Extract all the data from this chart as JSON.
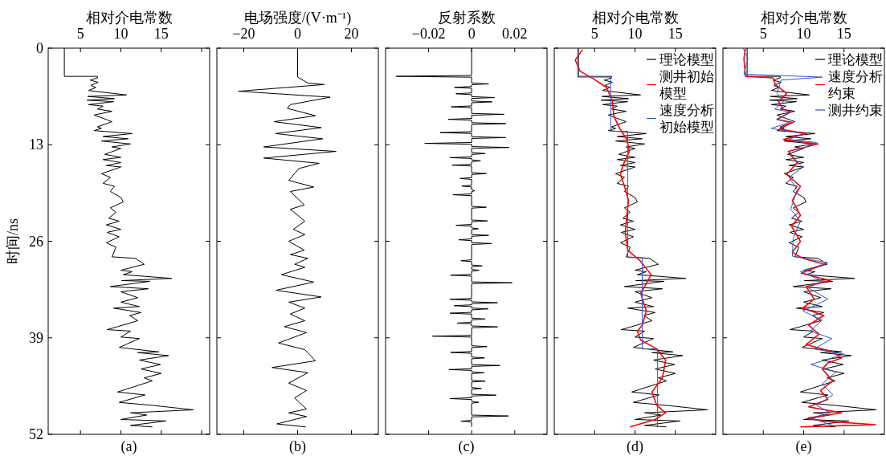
{
  "chart_data": [
    {
      "type": "line",
      "orientation": "horizontal",
      "xlabel": "相对介电常数",
      "ylabel": "时间/ns",
      "xlim": [
        1,
        21
      ],
      "xticks": [
        5,
        10,
        15,
        {
          "value": 20,
          "label": null
        }
      ],
      "ylim": [
        52,
        0
      ],
      "yticks": [
        0,
        13,
        26,
        39,
        52
      ],
      "annotations": [
        "(a)"
      ],
      "series": [
        {
          "color": "#000000",
          "x": [
            0,
            3.8,
            3.8,
            4.0,
            4.3,
            4.6,
            5.0,
            5.3,
            5.7,
            6.3,
            6.5,
            6.8,
            7.0,
            7.2,
            7.6,
            7.8,
            8.2,
            8.5,
            9.0,
            9.9,
            10.6,
            10.8,
            11.1,
            11.5,
            11.9,
            12.2,
            12.5,
            12.9,
            13.3,
            13.5,
            14.3,
            14.7,
            15.0,
            15.4,
            15.8,
            16.0,
            16.9,
            17.4,
            18.2,
            18.6,
            19.3,
            20.1,
            20.7,
            21.5,
            22.1,
            22.9,
            23.3,
            23.8,
            24.4,
            24.8,
            25.4,
            26.2,
            26.8,
            28.1,
            28.3,
            29.1,
            29.9,
            30.1,
            30.5,
            31.0,
            31.3,
            31.4,
            32.1,
            32.4,
            32.8,
            33.6,
            34.2,
            34.8,
            35.0,
            35.6,
            36.0,
            36.7,
            37.5,
            37.9,
            38.1,
            38.9,
            39.1,
            40.3,
            40.9,
            41.0,
            41.4,
            42.0,
            42.6,
            43.2,
            43.8,
            44.4,
            44.8,
            46.3,
            46.7,
            47.7,
            48.1,
            48.7,
            49.1,
            49.4,
            50.0,
            50.2,
            50.8,
            51.0
          ],
          "values": [
            3.0,
            3.0,
            7.1,
            7.1,
            6.2,
            7.2,
            6.3,
            6.9,
            6.0,
            10.7,
            5.9,
            9.2,
            5.8,
            9.1,
            6.0,
            7.8,
            7.1,
            8.9,
            6.7,
            8.9,
            7.1,
            7.6,
            6.7,
            11.4,
            7.8,
            10.9,
            7.6,
            11.2,
            8.9,
            10.0,
            8.0,
            10.0,
            7.8,
            10.0,
            8.2,
            10.0,
            7.6,
            8.7,
            7.8,
            9.2,
            8.7,
            10.0,
            10.3,
            8.7,
            9.4,
            8.5,
            9.8,
            8.2,
            10.0,
            8.3,
            9.8,
            8.2,
            9.4,
            8.9,
            11.8,
            12.9,
            10.0,
            11.4,
            10.3,
            16.3,
            10.1,
            13.6,
            8.7,
            13.4,
            10.0,
            12.1,
            10.0,
            12.3,
            9.1,
            12.5,
            11.1,
            12.1,
            9.6,
            8.3,
            11.2,
            10.0,
            12.3,
            9.8,
            14.7,
            12.1,
            15.9,
            12.3,
            14.9,
            12.5,
            15.0,
            12.9,
            13.9,
            9.6,
            13.0,
            9.8,
            13.9,
            19.0,
            11.2,
            13.2,
            10.0,
            15.6,
            11.2,
            13.9
          ]
        }
      ]
    },
    {
      "type": "line",
      "orientation": "horizontal",
      "xlabel": "电场强度/(V·m⁻¹)",
      "xlim": [
        -30,
        30
      ],
      "xticks": [
        {
          "value": -20,
          "label": "−20"
        },
        0,
        20
      ],
      "ylim": [
        52,
        0
      ],
      "yticks": [
        0,
        13,
        26,
        39,
        52
      ],
      "tick_labels": "x",
      "annotations": [
        "(b)"
      ],
      "series": [
        {
          "color": "#000000",
          "x": [
            0,
            3.9,
            4.7,
            4.9,
            5.8,
            6.6,
            7.6,
            8.1,
            9.1,
            9.9,
            10.7,
            11.5,
            12.2,
            13.3,
            13.9,
            14.8,
            15.5,
            16.2,
            17.8,
            18.7,
            19.3,
            21.1,
            21.7,
            23.3,
            24.4,
            25.1,
            26.0,
            27.2,
            27.8,
            28.3,
            29.1,
            29.5,
            30.5,
            31.5,
            32.6,
            33.5,
            34.2,
            35.0,
            35.8,
            36.7,
            37.5,
            38.3,
            39.7,
            40.6,
            42.1,
            43.0,
            43.7,
            45.1,
            46.1,
            47.1,
            48.6,
            49.1,
            49.6,
            50.6,
            51.0
          ],
          "values": [
            0,
            0,
            3.8,
            9.9,
            -22.0,
            12.1,
            -2.7,
            -3.8,
            6.6,
            -8.8,
            8.8,
            -8.2,
            9.3,
            -12.6,
            14.3,
            -12.6,
            8.0,
            0.5,
            -3.3,
            6.0,
            -2.7,
            2.5,
            -2.7,
            2.7,
            -1.6,
            2.7,
            -3.3,
            2.5,
            -2.7,
            3.8,
            -1.1,
            2.7,
            -6.0,
            6.0,
            -8.0,
            8.8,
            -3.3,
            2.7,
            -2.7,
            2.7,
            -4.9,
            3.3,
            -7.1,
            2.7,
            6.6,
            -9.5,
            3.8,
            -3.3,
            3.3,
            -1.1,
            3.3,
            -3.3,
            3.3,
            -7.7,
            3.0
          ]
        }
      ]
    },
    {
      "type": "line",
      "orientation": "horizontal",
      "xlabel": "反射系数",
      "xlim": [
        -0.04,
        0.035
      ],
      "xticks": [
        {
          "value": -0.02,
          "label": "−0.02"
        },
        0,
        0.02
      ],
      "ylim": [
        52,
        0
      ],
      "yticks": [
        0,
        13,
        26,
        39,
        52
      ],
      "tick_labels": "x",
      "annotations": [
        "(c)"
      ],
      "series": [
        {
          "color": "#000000",
          "x": [
            0,
            3.67,
            3.79,
            3.91,
            4.69,
            4.81,
            4.93,
            5.16,
            5.28,
            5.4,
            6.02,
            6.14,
            6.26,
            6.53,
            6.65,
            6.77,
            7.11,
            7.23,
            7.35,
            7.78,
            7.9,
            8.02,
            8.79,
            8.91,
            9.03,
            9.46,
            9.58,
            9.7,
            10.04,
            10.16,
            10.28,
            11.25,
            11.37,
            11.49,
            11.92,
            12.04,
            12.16,
            12.7,
            12.82,
            12.94,
            13.25,
            13.37,
            13.49,
            14.07,
            14.19,
            14.31,
            14.62,
            14.74,
            14.86,
            15.05,
            15.17,
            15.29,
            15.63,
            15.75,
            15.87,
            16.77,
            16.89,
            17.01,
            17.43,
            17.55,
            17.67,
            18.45,
            18.57,
            18.69,
            19.08,
            19.2,
            19.32,
            19.62,
            19.74,
            19.86,
            21.3,
            21.42,
            21.54,
            23.14,
            23.26,
            23.38,
            23.73,
            23.85,
            23.97,
            24.2,
            24.32,
            24.44,
            25.09,
            25.21,
            25.33,
            25.68,
            25.8,
            25.92,
            26.19,
            26.31,
            26.43,
            28.5,
            28.62,
            28.74,
            29.2,
            29.32,
            29.44,
            29.79,
            29.91,
            30.03,
            30.45,
            30.57,
            30.69,
            31.47,
            31.59,
            31.71,
            33.7,
            33.82,
            33.94,
            34.16,
            34.28,
            34.4,
            34.56,
            34.68,
            34.8,
            34.99,
            35.11,
            35.23,
            35.57,
            35.69,
            35.81,
            36.35,
            36.47,
            36.59,
            36.9,
            37.02,
            37.14,
            37.41,
            37.53,
            37.65,
            38.66,
            38.78,
            38.9,
            40.07,
            40.19,
            40.31,
            40.85,
            40.97,
            41.09,
            41.59,
            41.71,
            41.83,
            42.61,
            42.73,
            42.85,
            43.16,
            43.28,
            43.4,
            43.59,
            43.71,
            43.83,
            44.72,
            44.84,
            44.96,
            45.7,
            45.82,
            45.94,
            46.6,
            46.72,
            46.84,
            47.07,
            47.19,
            47.31,
            47.57,
            47.69,
            47.81,
            49.41,
            49.53,
            49.65,
            50.11,
            50.23,
            50.35,
            51.0
          ],
          "values": [
            0,
            0,
            -0.035,
            0,
            0,
            0.0079,
            0,
            0,
            -0.008,
            0,
            0,
            -0.0073,
            0,
            0,
            0.0106,
            0,
            0,
            0.0095,
            0,
            0,
            -0.0095,
            0,
            0,
            0.015,
            0,
            0,
            -0.0109,
            0,
            0,
            0.0158,
            0,
            0,
            -0.0146,
            0,
            0,
            0.0158,
            0,
            0,
            -0.0218,
            0,
            0,
            0.0174,
            0,
            0,
            0.0063,
            0,
            0,
            -0.0101,
            0,
            0,
            0.0041,
            0,
            0,
            -0.0091,
            0,
            0,
            0.0068,
            0,
            0,
            -0.0054,
            0,
            0,
            -0.0046,
            0,
            0,
            0.0014,
            0,
            0,
            -0.0087,
            0,
            0,
            0.0068,
            0,
            0,
            0.0073,
            0,
            0,
            -0.0073,
            0,
            0,
            0.0031,
            0,
            0,
            0.0079,
            0,
            0,
            -0.006,
            0,
            0,
            0.0093,
            0,
            0,
            -0.005,
            0,
            0,
            0.0049,
            0,
            0,
            0.0035,
            0,
            0,
            -0.0098,
            0,
            0,
            0.0188,
            0,
            0,
            -0.0101,
            0,
            0,
            0.012,
            0,
            0,
            -0.0082,
            0,
            0,
            0.0076,
            0,
            0,
            -0.0101,
            0,
            0,
            0.0063,
            0,
            0,
            -0.0068,
            0,
            0,
            0.012,
            0,
            0,
            -0.0182,
            0,
            0,
            0.0071,
            0,
            0,
            -0.0098,
            0,
            0,
            0.006,
            0,
            0,
            0.0131,
            0,
            0,
            -0.0105,
            0,
            0,
            0.0059,
            0,
            0,
            0.0063,
            0,
            0,
            0.0045,
            0,
            0,
            0.0113,
            0,
            0,
            -0.0101,
            0,
            0,
            0.0033,
            0,
            0,
            0.0171,
            0,
            0,
            -0.005,
            0,
            0
          ]
        }
      ]
    },
    {
      "type": "line",
      "orientation": "horizontal",
      "xlabel": "相对介电常数",
      "xlim": [
        0,
        20
      ],
      "xticks": [
        5,
        10,
        15
      ],
      "ylim": [
        52,
        0
      ],
      "yticks": [
        0,
        13,
        26,
        39,
        52
      ],
      "tick_labels": "x",
      "legend": "top right",
      "annotations": [
        "(d)"
      ],
      "series": [
        {
          "name": "理论模型",
          "color": "#000000",
          "x": [
            0,
            3.8,
            3.8,
            4.0,
            4.3,
            4.6,
            5.0,
            5.3,
            5.7,
            6.3,
            6.5,
            6.8,
            7.0,
            7.2,
            7.6,
            7.8,
            8.2,
            8.5,
            9.0,
            9.9,
            10.6,
            10.8,
            11.1,
            11.5,
            11.9,
            12.2,
            12.5,
            12.9,
            13.3,
            13.5,
            14.3,
            14.7,
            15.0,
            15.4,
            15.8,
            16.0,
            16.9,
            17.4,
            18.2,
            18.6,
            19.3,
            20.1,
            20.7,
            21.5,
            22.1,
            22.9,
            23.3,
            23.8,
            24.4,
            24.8,
            25.4,
            26.2,
            26.8,
            28.1,
            28.3,
            29.1,
            29.9,
            30.1,
            30.5,
            31.0,
            31.3,
            31.4,
            32.1,
            32.4,
            32.8,
            33.6,
            34.2,
            34.8,
            35.0,
            35.6,
            36.0,
            36.7,
            37.5,
            37.9,
            38.1,
            38.9,
            39.1,
            40.3,
            40.9,
            41.0,
            41.4,
            42.0,
            42.6,
            43.2,
            43.8,
            44.4,
            44.8,
            46.3,
            46.7,
            47.7,
            48.1,
            48.7,
            49.1,
            49.4,
            50.0,
            50.2,
            50.8,
            51.0
          ],
          "values": [
            3.0,
            3.0,
            7.1,
            7.1,
            6.2,
            7.2,
            6.3,
            6.9,
            6.0,
            10.7,
            5.9,
            9.2,
            5.8,
            9.1,
            6.0,
            7.8,
            7.1,
            8.9,
            6.7,
            8.9,
            7.1,
            7.6,
            6.7,
            11.4,
            7.8,
            10.9,
            7.6,
            11.2,
            8.9,
            10.0,
            8.0,
            10.0,
            7.8,
            10.0,
            8.2,
            10.0,
            7.6,
            8.7,
            7.8,
            9.2,
            8.7,
            10.0,
            10.3,
            8.7,
            9.4,
            8.5,
            9.8,
            8.2,
            10.0,
            8.3,
            9.8,
            8.2,
            9.4,
            8.9,
            11.8,
            12.9,
            10.0,
            11.4,
            10.3,
            16.3,
            10.1,
            13.6,
            8.7,
            13.4,
            10.0,
            12.1,
            10.0,
            12.3,
            9.1,
            12.5,
            11.1,
            12.1,
            9.6,
            8.3,
            11.2,
            10.0,
            12.3,
            9.8,
            14.7,
            12.1,
            15.9,
            12.3,
            14.9,
            12.5,
            15.0,
            12.9,
            13.9,
            9.6,
            13.0,
            9.8,
            13.9,
            19.0,
            11.2,
            13.2,
            10.0,
            15.6,
            11.2,
            13.9
          ]
        },
        {
          "name": "测井初始模型",
          "color": "#ff0000",
          "x": [
            0.2,
            1.6,
            3.1,
            4.1,
            5.3,
            7.2,
            9.2,
            10.8,
            12.3,
            13.9,
            15.8,
            17.0,
            18.6,
            20.5,
            22.5,
            24.8,
            27.2,
            28.7,
            30.5,
            32.1,
            33.0,
            35.4,
            37.3,
            38.1,
            39.3,
            40.5,
            42.0,
            44.4,
            46.3,
            48.1,
            49.1,
            50.0,
            51.0
          ],
          "values": [
            3.5,
            2.6,
            3.2,
            4.8,
            6.5,
            7.2,
            7.4,
            8.1,
            9.0,
            9.3,
            8.5,
            8.2,
            8.7,
            9.2,
            9.0,
            8.8,
            9.1,
            10.7,
            12.0,
            11.2,
            10.7,
            11.4,
            10.9,
            10.3,
            10.7,
            12.7,
            13.8,
            13.4,
            12.1,
            12.7,
            13.8,
            12.5,
            9.4
          ]
        },
        {
          "name": "速度分析初始模型",
          "color": "#3355cc",
          "x": [
            0,
            3.9,
            3.9,
            11.2,
            11.2,
            28.2,
            28.2,
            40.5,
            40.5,
            51.0
          ],
          "values": [
            2.9,
            2.9,
            7.0,
            7.0,
            9.1,
            9.1,
            10.9,
            10.9,
            12.8,
            12.8
          ]
        }
      ]
    },
    {
      "type": "line",
      "orientation": "horizontal",
      "xlabel": "相对介电常数",
      "xlim": [
        0,
        20
      ],
      "xticks": [
        5,
        10,
        15
      ],
      "ylim": [
        52,
        0
      ],
      "yticks": [
        0,
        13,
        26,
        39,
        52
      ],
      "tick_labels": "x",
      "legend": "top right",
      "annotations": [
        "(e)"
      ],
      "series": [
        {
          "name": "理论模型",
          "color": "#000000",
          "x": [
            0,
            3.8,
            3.8,
            4.0,
            4.3,
            4.6,
            5.0,
            5.3,
            5.7,
            6.3,
            6.5,
            6.8,
            7.0,
            7.2,
            7.6,
            7.8,
            8.2,
            8.5,
            9.0,
            9.9,
            10.6,
            10.8,
            11.1,
            11.5,
            11.9,
            12.2,
            12.5,
            12.9,
            13.3,
            13.5,
            14.3,
            14.7,
            15.0,
            15.4,
            15.8,
            16.0,
            16.9,
            17.4,
            18.2,
            18.6,
            19.3,
            20.1,
            20.7,
            21.5,
            22.1,
            22.9,
            23.3,
            23.8,
            24.4,
            24.8,
            25.4,
            26.2,
            26.8,
            28.1,
            28.3,
            29.1,
            29.9,
            30.1,
            30.5,
            31.0,
            31.3,
            31.4,
            32.1,
            32.4,
            32.8,
            33.6,
            34.2,
            34.8,
            35.0,
            35.6,
            36.0,
            36.7,
            37.5,
            37.9,
            38.1,
            38.9,
            39.1,
            40.3,
            40.9,
            41.0,
            41.4,
            42.0,
            42.6,
            43.2,
            43.8,
            44.4,
            44.8,
            46.3,
            46.7,
            47.7,
            48.1,
            48.7,
            49.1,
            49.4,
            50.0,
            50.2,
            50.8,
            51.0
          ],
          "values": [
            3.0,
            3.0,
            7.1,
            7.1,
            6.2,
            7.2,
            6.3,
            6.9,
            6.0,
            10.7,
            5.9,
            9.2,
            5.8,
            9.1,
            6.0,
            7.8,
            7.1,
            8.9,
            6.7,
            8.9,
            7.1,
            7.6,
            6.7,
            11.4,
            7.8,
            10.9,
            7.6,
            11.2,
            8.9,
            10.0,
            8.0,
            10.0,
            7.8,
            10.0,
            8.2,
            10.0,
            7.6,
            8.7,
            7.8,
            9.2,
            8.7,
            10.0,
            10.3,
            8.7,
            9.4,
            8.5,
            9.8,
            8.2,
            10.0,
            8.3,
            9.8,
            8.2,
            9.4,
            8.9,
            11.8,
            12.9,
            10.0,
            11.4,
            10.3,
            16.3,
            10.1,
            13.6,
            8.7,
            13.4,
            10.0,
            12.1,
            10.0,
            12.3,
            9.1,
            12.5,
            11.1,
            12.1,
            9.6,
            8.3,
            11.2,
            10.0,
            12.3,
            9.8,
            14.7,
            12.1,
            15.9,
            12.3,
            14.9,
            12.5,
            15.0,
            12.9,
            13.9,
            9.6,
            13.0,
            9.8,
            13.9,
            19.0,
            11.2,
            13.2,
            10.0,
            15.6,
            11.2,
            13.9
          ]
        },
        {
          "name": "速度分析约束",
          "color": "#ff0000",
          "x": [
            0,
            1.4,
            3.8,
            4.0,
            4.9,
            6.1,
            7.2,
            8.2,
            8.6,
            9.6,
            10.0,
            10.9,
            11.5,
            12.3,
            12.9,
            13.9,
            15.4,
            17.0,
            18.6,
            20.5,
            22.5,
            24.0,
            26.0,
            27.5,
            28.3,
            29.1,
            30.3,
            31.3,
            32.1,
            33.8,
            35.0,
            36.0,
            37.3,
            38.5,
            39.9,
            40.9,
            41.7,
            42.4,
            43.2,
            44.8,
            46.1,
            47.3,
            48.3,
            49.1,
            49.8,
            50.2,
            50.7,
            51.0
          ],
          "values": [
            2.8,
            2.6,
            2.8,
            6.2,
            6.5,
            7.9,
            6.9,
            7.4,
            8.4,
            6.7,
            8.6,
            7.0,
            10.3,
            7.5,
            11.8,
            8.1,
            9.2,
            7.9,
            9.6,
            8.6,
            9.6,
            8.5,
            9.6,
            8.6,
            9.9,
            12.6,
            9.7,
            13.3,
            10.3,
            11.3,
            9.9,
            12.5,
            10.6,
            11.9,
            10.3,
            13.6,
            14.7,
            13.0,
            12.3,
            13.6,
            12.1,
            13.0,
            10.6,
            14.7,
            10.6,
            12.3,
            18.9,
            9.6
          ]
        },
        {
          "name": "测井约束",
          "color": "#3355cc",
          "x": [
            0,
            1.4,
            3.5,
            3.9,
            4.3,
            6.1,
            7.2,
            8.2,
            8.6,
            9.6,
            10.0,
            10.8,
            11.5,
            12.3,
            12.7,
            14.3,
            16.0,
            17.4,
            19.0,
            21.7,
            23.3,
            25.6,
            28.0,
            28.9,
            30.1,
            31.3,
            32.3,
            33.8,
            35.4,
            36.6,
            38.1,
            39.1,
            40.5,
            41.2,
            42.6,
            43.6,
            45.2,
            46.7,
            48.1,
            49.1,
            49.8,
            50.8
          ],
          "values": [
            2.5,
            3.1,
            2.6,
            12.3,
            7.2,
            6.7,
            7.5,
            6.4,
            8.4,
            6.7,
            8.2,
            6.0,
            9.9,
            8.2,
            11.6,
            8.2,
            9.9,
            8.2,
            9.2,
            8.4,
            9.6,
            8.7,
            8.6,
            13.0,
            9.6,
            12.3,
            10.6,
            13.0,
            9.9,
            12.3,
            10.8,
            13.5,
            11.3,
            15.0,
            10.9,
            14.0,
            12.3,
            13.6,
            11.6,
            13.3,
            10.9,
            13.6
          ]
        }
      ]
    }
  ]
}
